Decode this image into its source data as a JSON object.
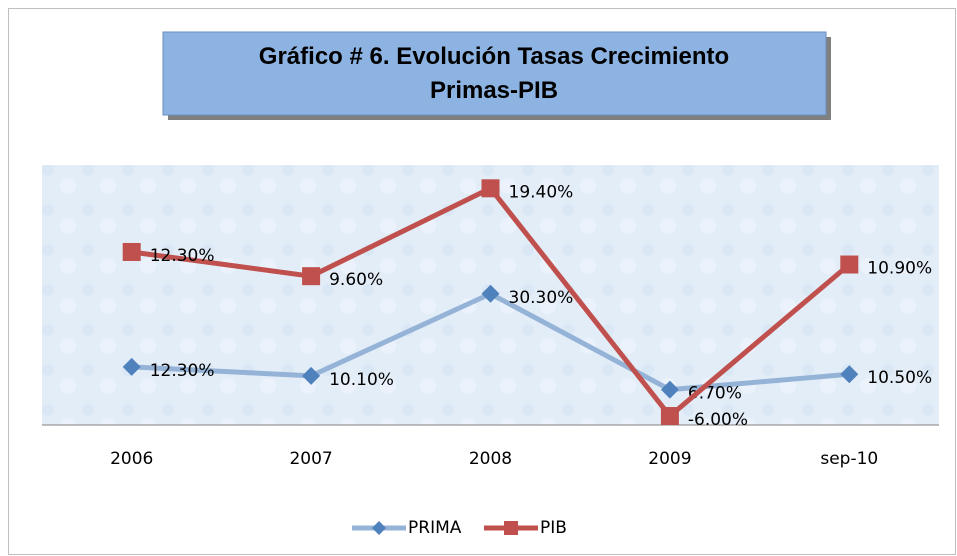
{
  "chart_data": {
    "type": "line",
    "title": "Gráfico #  6. Evolución Tasas Crecimiento Primas-PIB",
    "categories": [
      "2006",
      "2007",
      "2008",
      "2009",
      "sep-10"
    ],
    "series": [
      {
        "name": "PRIMA",
        "color": "#95b3d7",
        "marker": "diamond",
        "marker_color": "#4f81bd",
        "axis": "y2",
        "values": [
          12.3,
          10.1,
          30.3,
          6.7,
          10.5
        ],
        "value_labels": [
          "12.30%",
          "10.10%",
          "30.30%",
          "6.70%",
          "10.50%"
        ]
      },
      {
        "name": "PIB",
        "color": "#c0504d",
        "marker": "square",
        "marker_color": "#c0504d",
        "values": [
          12.3,
          9.6,
          19.4,
          -6.0,
          10.9
        ],
        "value_labels": [
          "12.30%",
          "9.60%",
          "19.40%",
          "-6.00%",
          "10.90%"
        ]
      }
    ],
    "ylim": [
      -7,
      22
    ],
    "y2lim": [
      -2,
      62
    ],
    "legend": "bottom"
  }
}
